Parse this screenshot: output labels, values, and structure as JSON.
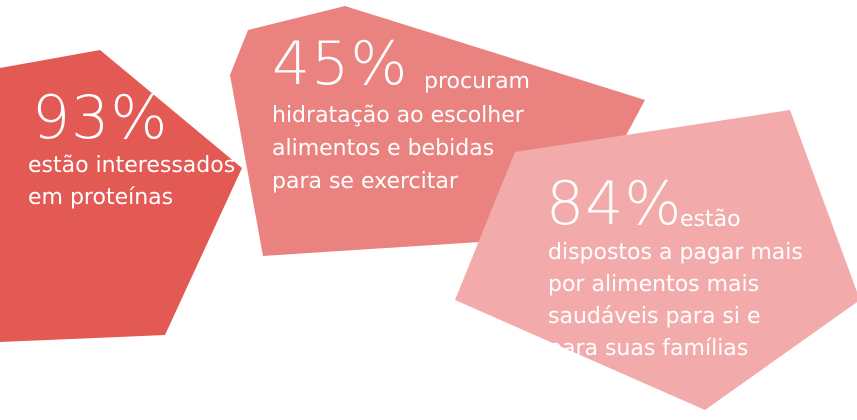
{
  "stats": [
    {
      "value": "93%",
      "text": [
        "estão interessados",
        "em proteínas"
      ]
    },
    {
      "value": "45%",
      "lead": "procuram",
      "text": [
        "hidratação ao escolher",
        "alimentos e bebidas",
        "para se exercitar"
      ]
    },
    {
      "value": "84%",
      "lead": "estão",
      "text": [
        "dispostos a pagar mais",
        "por alimentos mais",
        "saudáveis para si e",
        "para suas famílias"
      ]
    }
  ]
}
